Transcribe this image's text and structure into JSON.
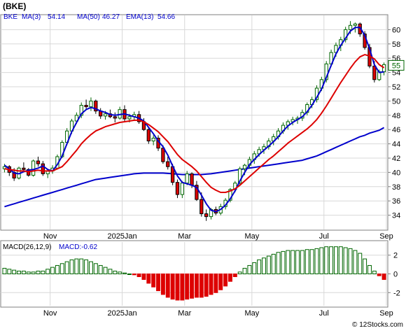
{
  "title": "(BKE)",
  "watermark": "© 12Stocks.com",
  "price_panel": {
    "symbol": "BKE",
    "legend": [
      {
        "label": "MA(3)",
        "value": "54.14",
        "color": "#0000cc"
      },
      {
        "label": "MA(50)",
        "value": "46.27",
        "color": "#0000cc"
      },
      {
        "label": "EMA(13)",
        "value": "54.66",
        "color": "#0000cc"
      }
    ],
    "last_price": "55",
    "ylim": [
      32,
      62
    ]
  },
  "macd_panel": {
    "label": "MACD(26,12,9)",
    "value_text": "MACD:-0.62",
    "ylim": [
      -3.4,
      3.4
    ]
  },
  "colors": {
    "up_body": "#ffffff",
    "up_edge": "#006600",
    "down_body": "#dd0000",
    "ma_short": "#0000cc",
    "ma_long": "#0000cc",
    "ema": "#dd0000",
    "hist_pos": "#006600",
    "hist_neg": "#dd0000",
    "frame": "#7f7f7f",
    "grid": "#d8d8d8"
  },
  "chart_data": {
    "type": "candlestick",
    "x_ticks": [
      "Nov",
      "2025Jan",
      "Mar",
      "May",
      "Jul",
      "Sep"
    ],
    "y_ticks": [
      34,
      36,
      38,
      40,
      42,
      44,
      46,
      48,
      50,
      52,
      54,
      56,
      58,
      60
    ],
    "candles": [
      [
        40.5,
        41.2,
        40.0,
        40.8
      ],
      [
        40.8,
        41.0,
        39.5,
        40.0
      ],
      [
        40.0,
        40.6,
        38.8,
        39.2
      ],
      [
        39.2,
        40.8,
        39.0,
        40.6
      ],
      [
        40.6,
        41.4,
        40.2,
        40.4
      ],
      [
        40.4,
        40.6,
        39.4,
        39.6
      ],
      [
        39.6,
        41.8,
        39.4,
        41.6
      ],
      [
        41.6,
        42.2,
        40.8,
        41.2
      ],
      [
        41.2,
        41.6,
        39.5,
        39.8
      ],
      [
        39.8,
        40.5,
        39.2,
        40.2
      ],
      [
        40.2,
        41.0,
        39.8,
        40.6
      ],
      [
        40.6,
        42.5,
        40.4,
        42.2
      ],
      [
        42.2,
        44.5,
        42.0,
        44.2
      ],
      [
        44.2,
        46.2,
        43.8,
        45.8
      ],
      [
        45.8,
        47.5,
        45.4,
        47.2
      ],
      [
        47.2,
        48.4,
        46.8,
        48.0
      ],
      [
        48.0,
        49.8,
        47.6,
        49.4
      ],
      [
        49.4,
        50.2,
        48.8,
        49.2
      ],
      [
        49.2,
        50.5,
        48.6,
        50.0
      ],
      [
        50.0,
        50.2,
        48.2,
        48.6
      ],
      [
        48.6,
        49.0,
        47.5,
        47.9
      ],
      [
        47.9,
        48.6,
        47.4,
        48.2
      ],
      [
        48.2,
        48.8,
        47.6,
        47.8
      ],
      [
        47.8,
        48.4,
        47.0,
        47.6
      ],
      [
        47.6,
        49.2,
        47.4,
        48.8
      ],
      [
        48.8,
        49.4,
        47.2,
        47.5
      ],
      [
        47.5,
        48.2,
        47.0,
        47.8
      ],
      [
        47.8,
        48.5,
        47.2,
        48.1
      ],
      [
        48.1,
        48.6,
        46.8,
        47.1
      ],
      [
        47.1,
        47.6,
        45.8,
        46.0
      ],
      [
        46.0,
        46.4,
        44.0,
        44.4
      ],
      [
        44.4,
        45.2,
        43.8,
        44.8
      ],
      [
        44.8,
        45.2,
        43.0,
        43.4
      ],
      [
        43.4,
        43.8,
        41.2,
        41.5
      ],
      [
        41.5,
        42.2,
        40.4,
        40.8
      ],
      [
        40.8,
        41.2,
        38.2,
        38.6
      ],
      [
        38.6,
        39.0,
        36.4,
        36.9
      ],
      [
        36.9,
        38.8,
        36.4,
        38.5
      ],
      [
        38.5,
        40.2,
        38.2,
        39.8
      ],
      [
        39.8,
        40.0,
        37.8,
        38.2
      ],
      [
        38.2,
        38.8,
        36.0,
        36.2
      ],
      [
        36.2,
        37.2,
        33.8,
        34.2
      ],
      [
        34.2,
        34.8,
        33.2,
        33.8
      ],
      [
        33.8,
        35.0,
        33.4,
        34.8
      ],
      [
        34.8,
        35.2,
        34.0,
        34.3
      ],
      [
        34.3,
        35.6,
        34.0,
        35.2
      ],
      [
        35.2,
        36.4,
        34.8,
        36.1
      ],
      [
        36.1,
        37.8,
        35.8,
        37.6
      ],
      [
        37.6,
        38.8,
        37.2,
        38.5
      ],
      [
        38.5,
        40.8,
        38.2,
        40.5
      ],
      [
        40.5,
        41.2,
        39.6,
        41.0
      ],
      [
        41.0,
        42.2,
        40.6,
        41.8
      ],
      [
        41.8,
        43.0,
        41.2,
        42.6
      ],
      [
        42.6,
        43.6,
        42.2,
        43.2
      ],
      [
        43.2,
        44.0,
        42.6,
        43.6
      ],
      [
        43.6,
        44.8,
        43.2,
        44.4
      ],
      [
        44.4,
        45.4,
        43.8,
        45.0
      ],
      [
        45.0,
        46.2,
        44.6,
        45.8
      ],
      [
        45.8,
        47.0,
        45.4,
        46.6
      ],
      [
        46.6,
        47.4,
        46.0,
        47.1
      ],
      [
        47.1,
        47.8,
        46.6,
        47.4
      ],
      [
        47.4,
        47.9,
        46.8,
        47.6
      ],
      [
        47.6,
        48.8,
        47.2,
        48.4
      ],
      [
        48.4,
        49.8,
        48.0,
        49.5
      ],
      [
        49.5,
        50.6,
        49.0,
        50.2
      ],
      [
        50.2,
        52.2,
        49.8,
        51.8
      ],
      [
        51.8,
        53.4,
        51.4,
        53.0
      ],
      [
        53.0,
        55.6,
        52.6,
        55.2
      ],
      [
        55.2,
        57.2,
        54.8,
        56.8
      ],
      [
        56.8,
        58.2,
        56.2,
        57.8
      ],
      [
        57.8,
        59.0,
        57.0,
        58.6
      ],
      [
        58.6,
        60.4,
        58.2,
        60.0
      ],
      [
        60.0,
        61.2,
        59.4,
        60.6
      ],
      [
        60.6,
        61.0,
        59.6,
        60.8
      ],
      [
        60.8,
        61.0,
        59.0,
        59.4
      ],
      [
        59.4,
        59.8,
        57.2,
        57.5
      ],
      [
        57.5,
        58.0,
        54.6,
        54.9
      ],
      [
        54.9,
        55.6,
        52.6,
        53.0
      ],
      [
        53.0,
        54.4,
        52.8,
        54.1
      ],
      [
        54.1,
        55.4,
        53.6,
        55.1
      ]
    ],
    "ma3": [
      41.0,
      40.5,
      39.9,
      39.8,
      40.1,
      40.3,
      40.4,
      40.6,
      40.9,
      40.4,
      40.2,
      41.1,
      42.3,
      44.0,
      45.7,
      47.0,
      48.2,
      48.8,
      49.1,
      48.9,
      48.6,
      48.4,
      48.1,
      48.0,
      48.1,
      48.2,
      48.0,
      47.8,
      47.6,
      47.2,
      46.3,
      45.4,
      44.4,
      43.6,
      42.4,
      40.9,
      39.5,
      38.6,
      38.4,
      38.2,
      37.9,
      36.8,
      35.6,
      34.7,
      34.5,
      34.8,
      35.4,
      36.3,
      37.4,
      38.8,
      40.0,
      41.1,
      41.8,
      42.5,
      43.1,
      43.7,
      44.3,
      45.0,
      45.8,
      46.5,
      47.0,
      47.4,
      47.8,
      48.5,
      49.4,
      50.5,
      51.7,
      53.3,
      55.0,
      56.6,
      57.8,
      58.8,
      59.8,
      60.3,
      60.3,
      59.2,
      57.3,
      55.1,
      54.0,
      54.1
    ],
    "ma50": [
      35.2,
      35.4,
      35.6,
      35.8,
      36.0,
      36.2,
      36.4,
      36.6,
      36.8,
      37.0,
      37.2,
      37.4,
      37.6,
      37.8,
      38.0,
      38.2,
      38.4,
      38.6,
      38.8,
      39.0,
      39.1,
      39.2,
      39.3,
      39.4,
      39.5,
      39.6,
      39.7,
      39.8,
      39.85,
      39.9,
      39.9,
      39.9,
      39.9,
      39.9,
      39.85,
      39.8,
      39.75,
      39.7,
      39.7,
      39.7,
      39.7,
      39.7,
      39.75,
      39.8,
      39.9,
      40.0,
      40.1,
      40.2,
      40.3,
      40.4,
      40.5,
      40.6,
      40.7,
      40.8,
      40.9,
      41.0,
      41.1,
      41.2,
      41.3,
      41.4,
      41.5,
      41.6,
      41.7,
      41.9,
      42.1,
      42.3,
      42.6,
      42.9,
      43.2,
      43.5,
      43.8,
      44.1,
      44.4,
      44.7,
      45.0,
      45.2,
      45.5,
      45.7,
      45.9,
      46.27
    ],
    "ema13": [
      40.5,
      40.4,
      40.3,
      40.2,
      40.2,
      40.1,
      40.2,
      40.3,
      40.2,
      40.2,
      40.2,
      40.5,
      40.8,
      41.5,
      42.3,
      43.1,
      44.0,
      44.7,
      45.3,
      45.8,
      46.1,
      46.4,
      46.6,
      46.8,
      47.0,
      47.1,
      47.2,
      47.3,
      47.3,
      47.1,
      46.7,
      46.2,
      45.7,
      45.0,
      44.3,
      43.4,
      42.5,
      41.8,
      41.3,
      40.8,
      40.2,
      39.4,
      38.6,
      37.9,
      37.5,
      37.2,
      37.2,
      37.4,
      37.7,
      38.2,
      38.8,
      39.4,
      40.0,
      40.6,
      41.2,
      41.8,
      42.3,
      42.9,
      43.5,
      44.1,
      44.6,
      45.1,
      45.6,
      46.1,
      46.7,
      47.4,
      48.3,
      49.3,
      50.4,
      51.5,
      52.6,
      53.6,
      54.6,
      55.5,
      56.2,
      56.5,
      56.3,
      55.9,
      55.1,
      54.66
    ],
    "macd_hist": [
      0.6,
      0.5,
      0.4,
      0.3,
      0.3,
      0.2,
      0.2,
      0.3,
      0.3,
      0.5,
      0.7,
      0.9,
      1.1,
      1.3,
      1.5,
      1.6,
      1.6,
      1.5,
      1.3,
      1.1,
      0.9,
      0.7,
      0.5,
      0.3,
      0.2,
      0.1,
      0.0,
      -0.1,
      -0.3,
      -0.6,
      -1.0,
      -1.4,
      -1.8,
      -2.2,
      -2.5,
      -2.7,
      -2.8,
      -2.8,
      -2.7,
      -2.6,
      -2.5,
      -2.5,
      -2.4,
      -2.2,
      -2.0,
      -1.7,
      -1.3,
      -0.8,
      -0.3,
      0.2,
      0.6,
      0.9,
      1.2,
      1.5,
      1.7,
      1.9,
      2.1,
      2.3,
      2.4,
      2.5,
      2.5,
      2.5,
      2.5,
      2.6,
      2.6,
      2.7,
      2.8,
      2.9,
      2.9,
      2.9,
      2.9,
      2.8,
      2.7,
      2.5,
      2.2,
      1.6,
      0.9,
      0.3,
      -0.2,
      -0.6
    ],
    "macd_ticks": [
      -2,
      0,
      2
    ],
    "ylabel": "",
    "xlabel": ""
  }
}
